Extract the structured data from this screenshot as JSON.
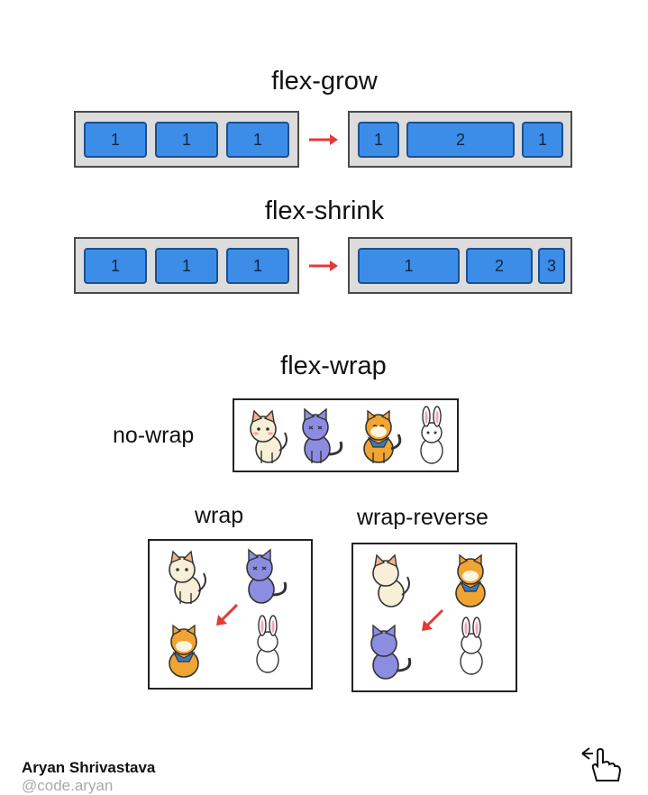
{
  "flex_grow": {
    "title": "flex-grow",
    "before": [
      "1",
      "1",
      "1"
    ],
    "after": [
      "1",
      "2",
      "1"
    ]
  },
  "flex_shrink": {
    "title": "flex-shrink",
    "before": [
      "1",
      "1",
      "1"
    ],
    "after": [
      "1",
      "2",
      "3"
    ]
  },
  "flex_wrap": {
    "title": "flex-wrap",
    "nowrap_label": "no-wrap",
    "wrap_label": "wrap",
    "wrap_reverse_label": "wrap-reverse"
  },
  "footer": {
    "author": "Aryan Shrivastava",
    "handle": "@code.aryan"
  },
  "colors": {
    "item_fill": "#3c8de8",
    "container_fill": "#dcdcdc",
    "arrow": "#e53935"
  }
}
